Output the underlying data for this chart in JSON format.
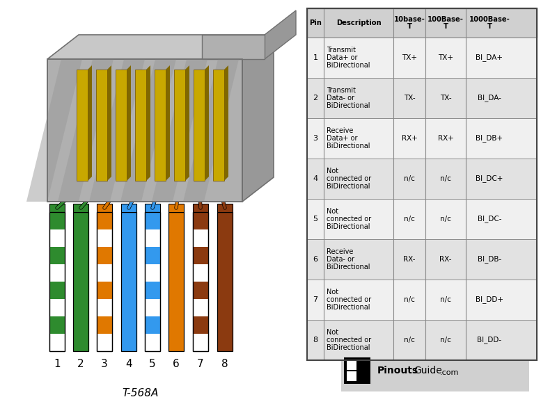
{
  "title": "T-568A",
  "bg_color": "#ffffff",
  "pins": [
    1,
    2,
    3,
    4,
    5,
    6,
    7,
    8
  ],
  "wire_colors": [
    [
      "#ffffff",
      "#2e8b2e"
    ],
    [
      "#2e8b2e",
      "#2e8b2e"
    ],
    [
      "#ffffff",
      "#e07800"
    ],
    [
      "#3399ee",
      "#3399ee"
    ],
    [
      "#ffffff",
      "#3399ee"
    ],
    [
      "#e07800",
      "#e07800"
    ],
    [
      "#ffffff",
      "#8b3a10"
    ],
    [
      "#8b3a10",
      "#8b3a10"
    ]
  ],
  "descriptions": [
    "Transmit\nData+ or\nBiDirectional",
    "Transmit\nData- or\nBiDirectional",
    "Receive\nData+ or\nBiDirectional",
    "Not\nconnected or\nBiDirectional",
    "Not\nconnected or\nBiDirectional",
    "Receive\nData- or\nBiDirectional",
    "Not\nconnected or\nBiDirectional",
    "Not\nconnected or\nBiDirectional"
  ],
  "base10": [
    "TX+",
    "TX-",
    "RX+",
    "n/c",
    "n/c",
    "RX-",
    "n/c",
    "n/c"
  ],
  "base100": [
    "TX+",
    "TX-",
    "RX+",
    "n/c",
    "n/c",
    "RX-",
    "n/c",
    "n/c"
  ],
  "base1000": [
    "BI_DA+",
    "BI_DA-",
    "BI_DB+",
    "BI_DC+",
    "BI_DC-",
    "BI_DB-",
    "BI_DD+",
    "BI_DD-"
  ],
  "connector_main": "#b0b0b0",
  "connector_right": "#989898",
  "connector_top": "#c8c8c8",
  "connector_dark": "#707070",
  "gold_color": "#c8a800",
  "gold_shadow": "#806800"
}
